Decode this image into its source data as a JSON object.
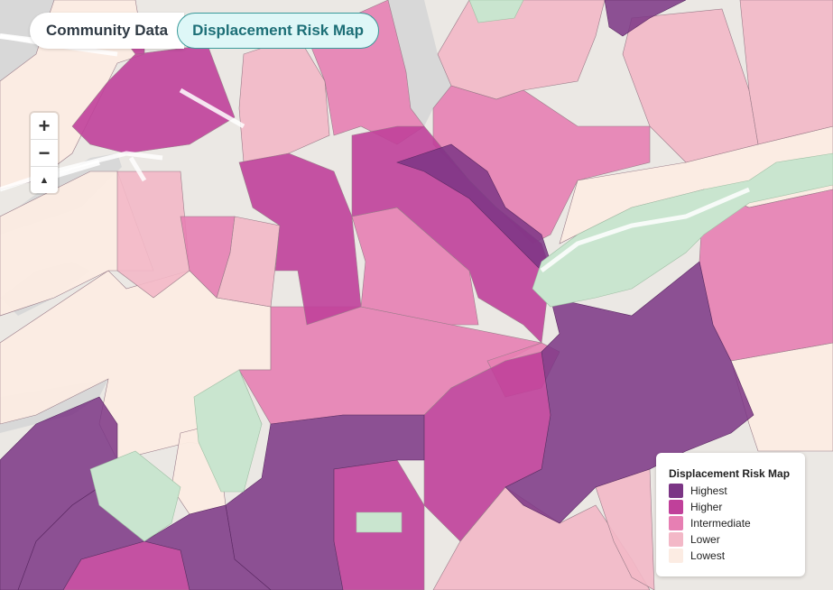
{
  "tabs": {
    "community": "Community Data",
    "risk": "Displacement Risk Map"
  },
  "zoom": {
    "in": "+",
    "out": "−",
    "compass": "▲"
  },
  "legend": {
    "title": "Displacement Risk Map",
    "items": [
      {
        "label": "Highest",
        "color": "#7b3585"
      },
      {
        "label": "Higher",
        "color": "#c0409a"
      },
      {
        "label": "Intermediate",
        "color": "#e77fb3"
      },
      {
        "label": "Lower",
        "color": "#f3b8c7"
      },
      {
        "label": "Lowest",
        "color": "#fcece3"
      }
    ]
  },
  "map_colors": {
    "water": "#d6d6d6",
    "land": "#ebe8e4",
    "park": "#c9e5cf",
    "highest": "#7b3585",
    "higher": "#c0409a",
    "intermediate": "#e77fb3",
    "lower": "#f3b8c7",
    "lowest": "#fcece3"
  }
}
